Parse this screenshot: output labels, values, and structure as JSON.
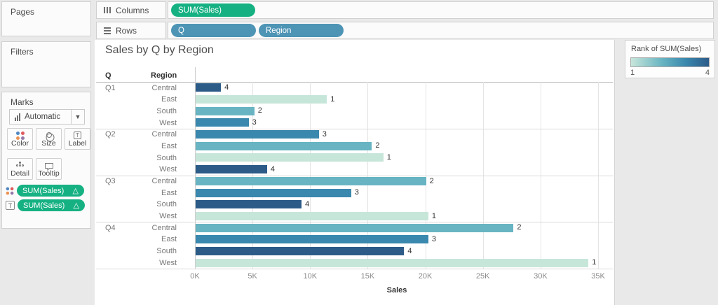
{
  "panels": {
    "pages_label": "Pages",
    "filters_label": "Filters",
    "marks": {
      "title": "Marks",
      "mark_type": "Automatic",
      "buttons": {
        "color": "Color",
        "size": "Size",
        "label": "Label",
        "detail": "Detail",
        "tooltip": "Tooltip"
      },
      "pills": [
        {
          "label": "SUM(Sales)",
          "modifier": "△"
        },
        {
          "label": "SUM(Sales)",
          "modifier": "△"
        }
      ]
    }
  },
  "shelves": {
    "columns_label": "Columns",
    "rows_label": "Rows",
    "columns_pills": [
      {
        "label": "SUM(Sales)"
      }
    ],
    "rows_pills": [
      {
        "label": "Q"
      },
      {
        "label": "Region"
      }
    ]
  },
  "legend": {
    "title": "Rank of SUM(Sales)",
    "min_label": "1",
    "max_label": "4"
  },
  "colors": {
    "measure_pill_green": "#16b182",
    "dimension_pill_blue": "#4d94b5",
    "mark_dot_colors": [
      "#4f86c0",
      "#e0595c",
      "#eb9152",
      "#9478a8"
    ],
    "rank_colors": {
      "1": "#c7e6da",
      "2": "#68b4c2",
      "3": "#3a88ae",
      "4": "#2c5b88"
    }
  },
  "chart_data": {
    "type": "bar",
    "title": "Sales by Q by Region",
    "row_headers": [
      "Q",
      "Region"
    ],
    "xlabel": "Sales",
    "x_ticks": [
      "0K",
      "5K",
      "10K",
      "15K",
      "20K",
      "25K",
      "30K",
      "35K"
    ],
    "xlim": [
      0,
      35000
    ],
    "grid": true,
    "legend_position": "top-right",
    "groups": [
      {
        "quarter": "Q1",
        "rows": [
          {
            "region": "Central",
            "sales": 2200,
            "rank": 4
          },
          {
            "region": "East",
            "sales": 11400,
            "rank": 1
          },
          {
            "region": "South",
            "sales": 5100,
            "rank": 2
          },
          {
            "region": "West",
            "sales": 4600,
            "rank": 3
          }
        ]
      },
      {
        "quarter": "Q2",
        "rows": [
          {
            "region": "Central",
            "sales": 10700,
            "rank": 3
          },
          {
            "region": "East",
            "sales": 15300,
            "rank": 2
          },
          {
            "region": "South",
            "sales": 16300,
            "rank": 1
          },
          {
            "region": "West",
            "sales": 6200,
            "rank": 4
          }
        ]
      },
      {
        "quarter": "Q3",
        "rows": [
          {
            "region": "Central",
            "sales": 20000,
            "rank": 2
          },
          {
            "region": "East",
            "sales": 13500,
            "rank": 3
          },
          {
            "region": "South",
            "sales": 9200,
            "rank": 4
          },
          {
            "region": "West",
            "sales": 20200,
            "rank": 1
          }
        ]
      },
      {
        "quarter": "Q4",
        "rows": [
          {
            "region": "Central",
            "sales": 27600,
            "rank": 2
          },
          {
            "region": "East",
            "sales": 20200,
            "rank": 3
          },
          {
            "region": "South",
            "sales": 18100,
            "rank": 4
          },
          {
            "region": "West",
            "sales": 34100,
            "rank": 1
          }
        ]
      }
    ]
  }
}
